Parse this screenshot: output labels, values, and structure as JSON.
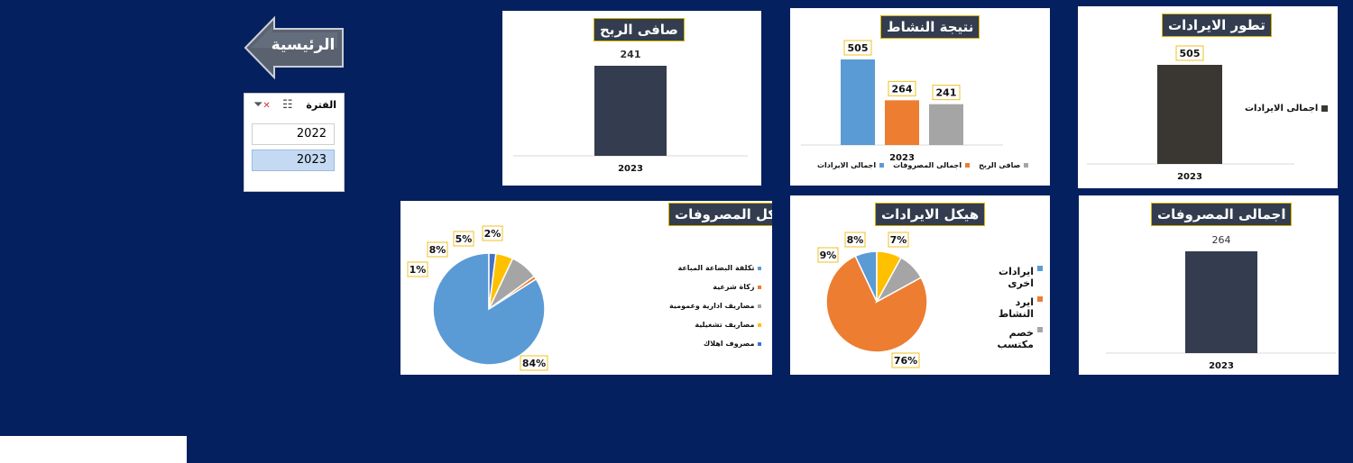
{
  "home": {
    "label": "الرئيسية"
  },
  "slicer": {
    "title": "الفترة",
    "items": [
      {
        "label": "2022",
        "selected": false
      },
      {
        "label": "2023",
        "selected": true
      }
    ]
  },
  "charts": {
    "net_profit": {
      "title": "صافى الربح",
      "chart_data": {
        "type": "bar",
        "categories": [
          "2023"
        ],
        "values": [
          241
        ],
        "color": "#333d4f"
      }
    },
    "activity_result": {
      "title": "نتيجة النشاط",
      "chart_data": {
        "type": "bar",
        "categories": [
          "2023"
        ],
        "series": [
          {
            "name": "اجمالى الايرادات",
            "values": [
              505
            ],
            "color": "#5b9bd5"
          },
          {
            "name": "اجمالى المصروفات",
            "values": [
              264
            ],
            "color": "#ed7d31"
          },
          {
            "name": "صافى الربح",
            "values": [
              241
            ],
            "color": "#a5a5a5"
          }
        ]
      }
    },
    "revenue_trend": {
      "title": "تطور الايرادات",
      "chart_data": {
        "type": "bar",
        "categories": [
          "2023"
        ],
        "series": [
          {
            "name": "اجمالى الايرادات",
            "values": [
              505
            ],
            "color": "#3a3733"
          }
        ]
      }
    },
    "expense_structure": {
      "title": "هيكل المصروفات",
      "chart_data": {
        "type": "pie",
        "series": [
          {
            "name": "تكلفة البضاعة المباعة",
            "value": 84,
            "label": "84%",
            "color": "#5b9bd5"
          },
          {
            "name": "زكاة شرعية",
            "value": 1,
            "label": "1%",
            "color": "#ed7d31"
          },
          {
            "name": "مصاريف ادارية وعمومية",
            "value": 8,
            "label": "8%",
            "color": "#a5a5a5"
          },
          {
            "name": "مصاريف تشغيلية",
            "value": 5,
            "label": "5%",
            "color": "#ffc000"
          },
          {
            "name": "مصروف اهلاك",
            "value": 2,
            "label": "2%",
            "color": "#4472c4"
          }
        ]
      }
    },
    "revenue_structure": {
      "title": "هيكل الايرادات",
      "chart_data": {
        "type": "pie",
        "series": [
          {
            "name": "ايرادات اخرى",
            "value": 7,
            "label": "7%",
            "color": "#5b9bd5"
          },
          {
            "name": "ايرد النشاط",
            "value": 76,
            "label": "76%",
            "color": "#ed7d31"
          },
          {
            "name": "خصم مكتسب",
            "value": 9,
            "label": "9%",
            "color": "#a5a5a5"
          },
          {
            "name": "",
            "value": 8,
            "label": "8%",
            "color": "#ffc000"
          }
        ]
      }
    },
    "total_expenses": {
      "title": "اجمالى المصروفات",
      "chart_data": {
        "type": "bar",
        "categories": [
          "2023"
        ],
        "values": [
          264
        ],
        "color": "#333d4f"
      }
    }
  }
}
